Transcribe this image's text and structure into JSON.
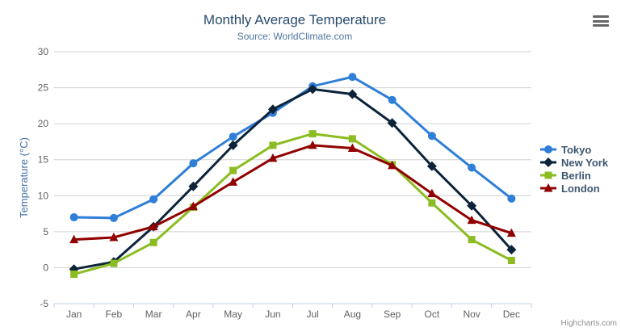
{
  "chart": {
    "title": "Monthly Average Temperature",
    "subtitle": "Source: WorldClimate.com",
    "credit": "Highcharts.com",
    "export_icon": "hamburger-menu-icon"
  },
  "chart_data": {
    "type": "line",
    "title": "Monthly Average Temperature",
    "subtitle": "Source: WorldClimate.com",
    "categories": [
      "Jan",
      "Feb",
      "Mar",
      "Apr",
      "May",
      "Jun",
      "Jul",
      "Aug",
      "Sep",
      "Oct",
      "Nov",
      "Dec"
    ],
    "series": [
      {
        "name": "Tokyo",
        "color": "#2f7ed8",
        "marker": "circle",
        "values": [
          7.0,
          6.9,
          9.5,
          14.5,
          18.2,
          21.5,
          25.2,
          26.5,
          23.3,
          18.3,
          13.9,
          9.6
        ]
      },
      {
        "name": "New York",
        "color": "#0d233a",
        "marker": "diamond",
        "values": [
          -0.2,
          0.8,
          5.7,
          11.3,
          17.0,
          22.0,
          24.8,
          24.1,
          20.1,
          14.1,
          8.6,
          2.5
        ]
      },
      {
        "name": "Berlin",
        "color": "#8bbc21",
        "marker": "square",
        "values": [
          -0.9,
          0.6,
          3.5,
          8.4,
          13.5,
          17.0,
          18.6,
          17.9,
          14.3,
          9.0,
          3.9,
          1.0
        ]
      },
      {
        "name": "London",
        "color": "#910000",
        "marker": "triangle",
        "values": [
          3.9,
          4.2,
          5.7,
          8.5,
          11.9,
          15.2,
          17.0,
          16.6,
          14.2,
          10.3,
          6.6,
          4.8
        ]
      }
    ],
    "xlabel": "",
    "ylabel": "Temperature (°C)",
    "ylim": [
      -5,
      30
    ],
    "y_tick_interval": 5,
    "grid": true,
    "legend_position": "right"
  },
  "colors": {
    "title": "#274b6d",
    "subtitle": "#4d759e",
    "axis_label": "#606060",
    "axis_line": "#c0d0e0",
    "gridline": "#d0d0d0",
    "y_axis_title": "#4572a7",
    "legend_text": "#3e576f",
    "credit": "#909090"
  }
}
